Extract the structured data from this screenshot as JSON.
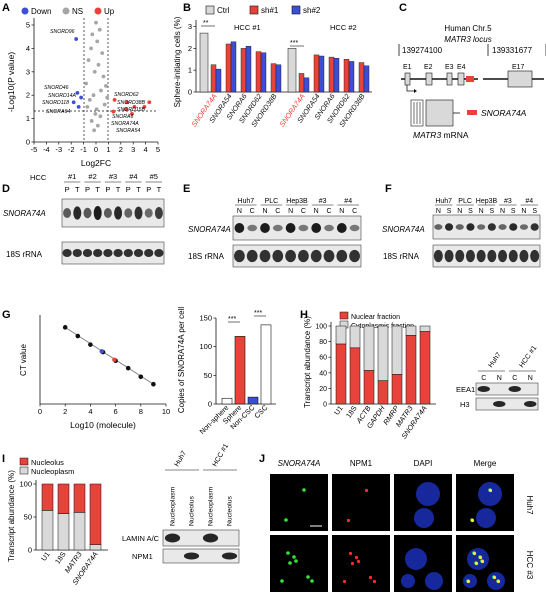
{
  "panels": {
    "A": {
      "label": "A",
      "legend": [
        {
          "text": "Down",
          "color": "#3b4fd6"
        },
        {
          "text": "NS",
          "color": "#a6a6a6"
        },
        {
          "text": "Up",
          "color": "#e8433a"
        }
      ],
      "ylabel": "-Log10(P value)",
      "xlabel": "Log2FC",
      "xticks": [
        "-5",
        "-4",
        "-3",
        "-2",
        "-1",
        "0",
        "1",
        "2",
        "3",
        "4",
        "5"
      ],
      "yticks": [
        "0",
        "1",
        "2",
        "3",
        "4",
        "5"
      ],
      "down_genes": [
        "SNORD96",
        "SNORD46",
        "SNORD14A",
        "SNORD118",
        "SNORA64"
      ],
      "up_genes": [
        "SNORD62",
        "SNORD38B",
        "SNORD15B",
        "SNORA6",
        "SNORA74A",
        "SNORA54"
      ]
    },
    "B": {
      "label": "B",
      "legend": [
        "Ctrl",
        "sh#1",
        "sh#2"
      ],
      "ylabel": "Sphere-initiating cells (%)",
      "yticks": [
        "0",
        "1",
        "2",
        "3"
      ],
      "groups": [
        "HCC #1",
        "HCC #2"
      ],
      "xlabels": [
        "SNORA74A",
        "SNORA54",
        "SNORA6",
        "SNORD62",
        "SNORD38B",
        "SNORA74A",
        "SNORA54",
        "SNORA6",
        "SNORD62",
        "SNORD38B"
      ],
      "sig": [
        "**",
        "***"
      ]
    },
    "C": {
      "label": "C",
      "title1": "Human Chr.5",
      "title2": "MATR3 locus",
      "coord_left": "139274100",
      "coord_right": "139331677",
      "exons": [
        "E1",
        "E2",
        "E3",
        "E4",
        "E17"
      ],
      "mrna_label": "MATR3",
      "mrna_suffix": " mRNA",
      "legend_label": "SNORA74A"
    },
    "D": {
      "label": "D",
      "hcc": "HCC",
      "cases": [
        "#1",
        "#2",
        "#3",
        "#4",
        "#5"
      ],
      "lanes": [
        "P",
        "T",
        "P",
        "T",
        "P",
        "T",
        "P",
        "T",
        "P",
        "T"
      ],
      "rows": [
        "SNORA74A",
        "18S rRNA"
      ]
    },
    "E": {
      "label": "E",
      "lines": [
        "Huh7",
        "PLC",
        "Hep3B",
        "#3",
        "#4"
      ],
      "lanes": [
        "N",
        "C",
        "N",
        "C",
        "N",
        "C",
        "N",
        "C",
        "N",
        "C"
      ],
      "rows": [
        "SNORA74A",
        "18S rRNA"
      ]
    },
    "F": {
      "label": "F",
      "lines": [
        "Huh7",
        "PLC",
        "Hep3B",
        "#3",
        "#4"
      ],
      "lanes": [
        "N",
        "S",
        "N",
        "S",
        "N",
        "S",
        "N",
        "S",
        "N",
        "S"
      ],
      "rows": [
        "SNORA74A",
        "18S rRNA"
      ]
    },
    "G": {
      "label": "G",
      "ylabel": "CT value",
      "xlabel": "Log10 (molecule)",
      "y2label": "Copies of SNORA74A per cell",
      "y2ticks": [
        "0",
        "50",
        "100",
        "150"
      ],
      "bar_labels": [
        "Non-sphere",
        "Sphere",
        "Non-CSC",
        "CSC"
      ],
      "sig": [
        "***",
        "***"
      ]
    },
    "H": {
      "label": "H",
      "legend": [
        "Nuclear fraction",
        "Cytoplasmic fraction"
      ],
      "ylabel": "Transcript abundance (%)",
      "yticks": [
        "0",
        "20",
        "40",
        "60",
        "80",
        "100"
      ],
      "bar_labels": [
        "U1",
        "18S",
        "ACTB",
        "GAPDH",
        "RMRP",
        "MATR3",
        "SNORA74A"
      ],
      "blot_lines": [
        "Huh7",
        "HCC #1"
      ],
      "blot_lanes": [
        "C",
        "N",
        "C",
        "N"
      ],
      "blot_rows": [
        "EEA1",
        "H3"
      ]
    },
    "I": {
      "label": "I",
      "legend": [
        "Nucleolus",
        "Nucleoplasm"
      ],
      "ylabel": "Transcript abundance (%)",
      "yticks": [
        "0",
        "50",
        "100"
      ],
      "bar_labels": [
        "U1",
        "18S",
        "MATR3",
        "SNORA74A"
      ],
      "blot_lines": [
        "Huh7",
        "HCC #1"
      ],
      "blot_lanes": [
        "Nucleoplasm",
        "Nucleolus",
        "Nucleoplasm",
        "Nucleolus"
      ],
      "blot_rows": [
        "LAMIN A/C",
        "NPM1"
      ]
    },
    "J": {
      "label": "J",
      "cols": [
        "SNORA74A",
        "NPM1",
        "DAPI",
        "Merge"
      ],
      "rows": [
        "Huh7",
        "HCC #3"
      ]
    }
  },
  "chart_data": [
    {
      "type": "scatter",
      "title": "",
      "xlabel": "Log2FC",
      "ylabel": "-Log10(P value)",
      "xlim": [
        -5,
        5
      ],
      "ylim": [
        0,
        5.3
      ],
      "series": [
        {
          "name": "Down",
          "x": [
            -1.6,
            -1.5,
            -1.2,
            -1.8,
            -1.4
          ],
          "y": [
            4.4,
            2.1,
            1.9,
            1.7,
            1.5
          ]
        },
        {
          "name": "Up",
          "x": [
            1.5,
            2.5,
            3.1,
            2.4,
            3.9,
            4.3,
            1.4,
            2.9
          ],
          "y": [
            1.8,
            1.7,
            1.5,
            1.4,
            1.5,
            1.7,
            1.3,
            1.2
          ]
        },
        {
          "name": "NS",
          "x": [
            0,
            0.3,
            -0.3,
            0.1,
            -0.4,
            0.5,
            -0.6,
            0.2,
            -0.1,
            0.6,
            -0.8,
            0.8,
            0.4,
            -0.2,
            0.9,
            -0.5,
            0.7,
            -0.7,
            0.05,
            -0.05,
            0.35,
            -0.35,
            0.15,
            -0.15
          ],
          "y": [
            5.1,
            4.8,
            4.6,
            4.3,
            4.0,
            3.8,
            3.5,
            3.3,
            3.0,
            2.8,
            2.5,
            2.4,
            2.2,
            2.0,
            1.9,
            1.8,
            1.6,
            1.5,
            1.4,
            1.2,
            1.1,
            0.9,
            0.7,
            0.5
          ]
        }
      ],
      "thresholds": {
        "x": [
          -1,
          1
        ],
        "y": 1.3
      }
    },
    {
      "type": "bar",
      "title": "",
      "ylabel": "Sphere-initiating cells (%)",
      "ylim": [
        0,
        3.3
      ],
      "categories": [
        "Ctrl",
        "SNORA74A",
        "SNORA54",
        "SNORA6",
        "SNORD62",
        "SNORD38B"
      ],
      "series": [
        {
          "name": "HCC #1",
          "values": [
            2.7,
            1.25,
            2.2,
            2.0,
            1.85,
            1.3
          ],
          "values_sh2": [
            null,
            1.05,
            2.3,
            2.1,
            1.8,
            1.25
          ]
        },
        {
          "name": "HCC #2",
          "values": [
            2.0,
            0.85,
            1.7,
            1.6,
            1.5,
            1.35
          ],
          "values_sh2": [
            null,
            0.65,
            1.65,
            1.55,
            1.4,
            1.2
          ]
        }
      ]
    },
    {
      "type": "scatter",
      "title": "",
      "xlabel": "Log10 (molecule)",
      "ylabel": "CT value",
      "xlim": [
        0,
        10
      ],
      "ylim": [
        0,
        36
      ],
      "series": [
        {
          "name": "standard",
          "x": [
            2,
            3,
            4,
            5,
            6,
            7,
            8,
            9
          ],
          "y": [
            31,
            27.5,
            24,
            21,
            17.5,
            14.5,
            11,
            8
          ]
        }
      ]
    },
    {
      "type": "bar",
      "title": "",
      "ylabel": "Copies of SNORA74A per cell",
      "ylim": [
        0,
        150
      ],
      "categories": [
        "Non-sphere",
        "Sphere",
        "Non-CSC",
        "CSC"
      ],
      "values": [
        10,
        118,
        12,
        138
      ]
    },
    {
      "type": "bar",
      "title": "",
      "ylabel": "Transcript abundance (%)",
      "ylim": [
        0,
        100
      ],
      "categories": [
        "U1",
        "18S",
        "ACTB",
        "GAPDH",
        "RMRP",
        "MATR3",
        "SNORA74A"
      ],
      "series": [
        {
          "name": "Nuclear fraction",
          "values": [
            77,
            72,
            43,
            30,
            38,
            88,
            93
          ]
        },
        {
          "name": "Cytoplasmic fraction",
          "values": [
            23,
            28,
            57,
            70,
            62,
            12,
            7
          ]
        }
      ]
    },
    {
      "type": "bar",
      "title": "",
      "ylabel": "Transcript abundance (%)",
      "ylim": [
        0,
        100
      ],
      "categories": [
        "U1",
        "18S",
        "MATR3",
        "SNORA74A"
      ],
      "series": [
        {
          "name": "Nucleolus",
          "values": [
            40,
            45,
            43,
            92
          ]
        },
        {
          "name": "Nucleoplasm",
          "values": [
            60,
            55,
            57,
            8
          ]
        }
      ]
    }
  ],
  "colors": {
    "red": "#e8433a",
    "blue": "#3b4fd6",
    "gray": "#d9d9d9",
    "dark": "#111111"
  }
}
